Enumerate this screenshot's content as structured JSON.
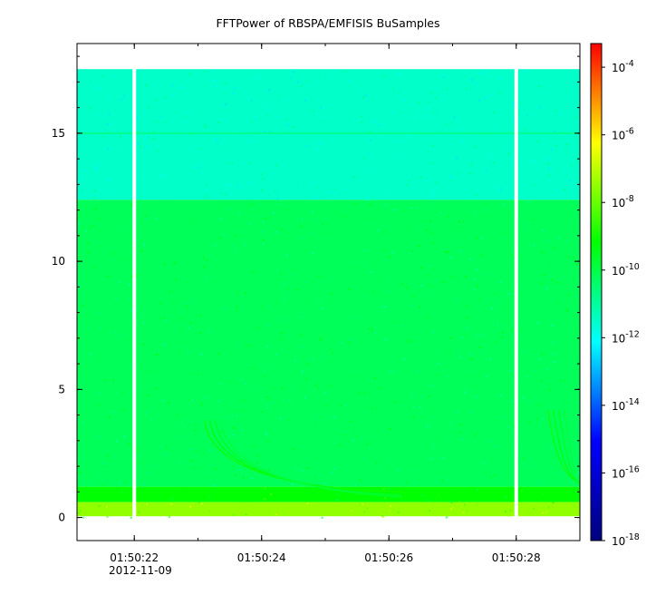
{
  "chart_data": {
    "type": "heatmap",
    "title": "FFTPower of RBSPA/EMFISIS  BuSamples",
    "xlabel": "",
    "ylabel": "",
    "x_axis": {
      "kind": "time",
      "range": [
        "01:50:21.1",
        "01:50:29.0"
      ],
      "ticks": [
        "01:50:22",
        "01:50:24",
        "01:50:26",
        "01:50:28"
      ],
      "date_label": "2012-11-09"
    },
    "y_axis": {
      "range": [
        -0.9,
        18.5
      ],
      "ticks": [
        0,
        5,
        10,
        15
      ]
    },
    "colorbar": {
      "scale": "log",
      "range_exponents": [
        -18,
        -3.3
      ],
      "tick_exponents": [
        -4,
        -6,
        -8,
        -10,
        -12,
        -14,
        -16,
        -18
      ],
      "tick_labels": [
        "10-4",
        "10-6",
        "10-8",
        "10-10",
        "10-12",
        "10-14",
        "10-16",
        "10-18"
      ],
      "colormap": [
        "#000080",
        "#0000ff",
        "#00ffff",
        "#00ff00",
        "#ffff00",
        "#ff0000"
      ]
    },
    "data_gaps_time": [
      "01:50:22",
      "01:50:28"
    ],
    "regions": [
      {
        "freq_range": [
          12.4,
          17.5
        ],
        "log10_power": -11.5
      },
      {
        "freq_range": [
          1.2,
          12.4
        ],
        "log10_power": -10.2
      },
      {
        "freq_range": [
          0.6,
          1.2
        ],
        "log10_power": -9.2
      },
      {
        "freq_range": [
          0.05,
          0.6
        ],
        "log10_power": -7.5
      }
    ],
    "features": [
      {
        "type": "line",
        "freq": 15.0,
        "log10_power": -10.8
      },
      {
        "type": "arc",
        "time_start": "01:50:23.1",
        "time_end": "01:50:26.2",
        "freq_start": 3.8,
        "freq_end": 1.0,
        "log10_power": -9.0
      },
      {
        "type": "arc",
        "time_start": "01:50:28.5",
        "time_end": "01:50:29.0",
        "freq_start": 4.2,
        "freq_end": 1.4,
        "log10_power": -9.0
      }
    ],
    "grid": false,
    "legend": "none"
  }
}
